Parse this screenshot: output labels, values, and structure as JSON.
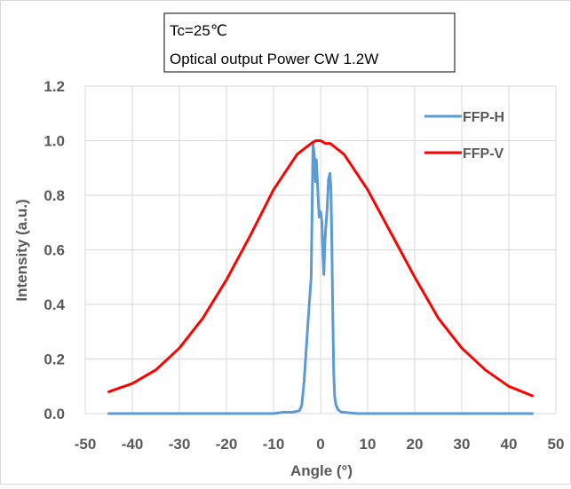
{
  "chart_data": {
    "type": "line",
    "title": "",
    "xlabel": "Angle (°)",
    "ylabel": "Intensity (a.u.)",
    "xlim": [
      -50,
      50
    ],
    "ylim": [
      0,
      1.2
    ],
    "x_ticks": [
      "-50",
      "-40",
      "-30",
      "-20",
      "-10",
      "0",
      "10",
      "20",
      "30",
      "40",
      "50"
    ],
    "y_ticks": [
      "0.0",
      "0.2",
      "0.4",
      "0.6",
      "0.8",
      "1.0",
      "1.2"
    ],
    "grid": "vertical and horizontal",
    "legend_position": "top-right",
    "annotations": [
      "Tc=25℃",
      "Optical output Power CW 1.2W"
    ],
    "series": [
      {
        "name": "FFP-H",
        "color": "#5B9BD5",
        "x": [
          -45,
          -20,
          -10,
          -8,
          -6,
          -4.5,
          -4,
          -3.5,
          -3,
          -2.5,
          -2,
          -1.6,
          -1.3,
          -1.1,
          -0.9,
          -0.7,
          -0.5,
          -0.3,
          0,
          0.3,
          0.5,
          0.7,
          0.9,
          1.1,
          1.4,
          1.7,
          2,
          2.2,
          2.4,
          2.6,
          2.8,
          3,
          3.3,
          3.7,
          4,
          4.5,
          5,
          6,
          8,
          10,
          20,
          45
        ],
        "y": [
          0.0,
          0.0,
          0.0,
          0.005,
          0.005,
          0.01,
          0.03,
          0.12,
          0.25,
          0.38,
          0.5,
          0.99,
          0.94,
          0.85,
          0.93,
          0.86,
          0.78,
          0.72,
          0.74,
          0.7,
          0.58,
          0.51,
          0.62,
          0.68,
          0.75,
          0.86,
          0.88,
          0.82,
          0.62,
          0.35,
          0.15,
          0.06,
          0.03,
          0.015,
          0.01,
          0.005,
          0.005,
          0.003,
          0.0,
          0.0,
          0.0,
          0.0
        ]
      },
      {
        "name": "FFP-V",
        "color": "#FF0000",
        "x": [
          -45,
          -40,
          -35,
          -30,
          -25,
          -20,
          -15,
          -10,
          -5,
          -2,
          -1,
          0,
          1,
          2,
          5,
          10,
          15,
          20,
          25,
          30,
          35,
          40,
          45
        ],
        "y": [
          0.08,
          0.11,
          0.16,
          0.24,
          0.35,
          0.49,
          0.65,
          0.82,
          0.95,
          0.99,
          1.0,
          1.0,
          0.99,
          0.99,
          0.95,
          0.82,
          0.66,
          0.5,
          0.35,
          0.24,
          0.16,
          0.1,
          0.065
        ]
      }
    ]
  }
}
